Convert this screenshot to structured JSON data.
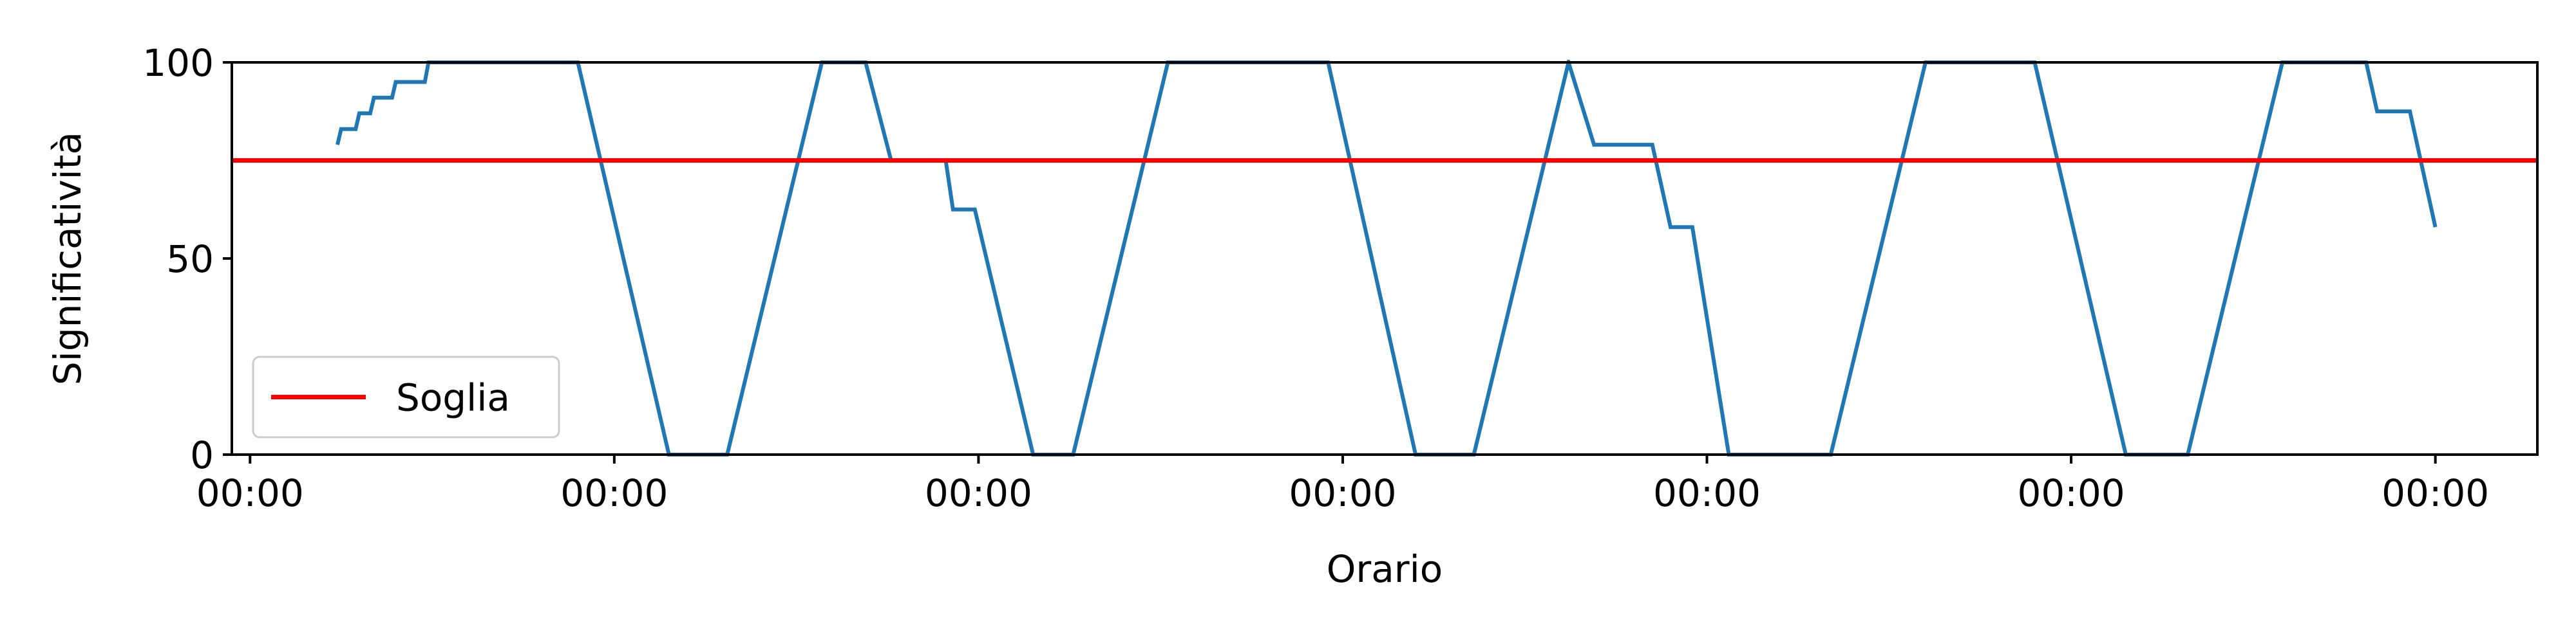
{
  "chart_data": {
    "type": "line",
    "title": "",
    "xlabel": "Orario",
    "ylabel": "Significatività",
    "ylim": [
      0,
      100
    ],
    "xlim": [
      -0.05,
      6.28
    ],
    "grid": true,
    "legend_position": "lower-left",
    "x_tick_values": [
      0,
      1,
      2,
      3,
      4,
      5,
      6
    ],
    "x_tick_labels": [
      "00:00",
      "00:00",
      "00:00",
      "00:00",
      "00:00",
      "00:00",
      "00:00"
    ],
    "y_ticks": [
      0,
      50,
      100
    ],
    "series": [
      {
        "name": "",
        "color": "#1f77b4",
        "points": [
          [
            0.24,
            79
          ],
          [
            0.25,
            83
          ],
          [
            0.29,
            83
          ],
          [
            0.3,
            87
          ],
          [
            0.33,
            87
          ],
          [
            0.34,
            91
          ],
          [
            0.39,
            91
          ],
          [
            0.4,
            95
          ],
          [
            0.48,
            95
          ],
          [
            0.49,
            100
          ],
          [
            0.9,
            100
          ],
          [
            1.15,
            0
          ],
          [
            1.31,
            0
          ],
          [
            1.57,
            100
          ],
          [
            1.69,
            100
          ],
          [
            1.76,
            75
          ],
          [
            1.91,
            75
          ],
          [
            1.93,
            62.5
          ],
          [
            1.99,
            62.5
          ],
          [
            2.15,
            0
          ],
          [
            2.26,
            0
          ],
          [
            2.52,
            100
          ],
          [
            2.96,
            100
          ],
          [
            3.2,
            0
          ],
          [
            3.36,
            0
          ],
          [
            3.62,
            100
          ],
          [
            3.69,
            79
          ],
          [
            3.85,
            79
          ],
          [
            3.9,
            58
          ],
          [
            3.96,
            58
          ],
          [
            4.06,
            0
          ],
          [
            4.34,
            0
          ],
          [
            4.6,
            100
          ],
          [
            4.9,
            100
          ],
          [
            5.15,
            0
          ],
          [
            5.32,
            0
          ],
          [
            5.58,
            100
          ],
          [
            5.81,
            100
          ],
          [
            5.84,
            87.5
          ],
          [
            5.93,
            87.5
          ],
          [
            6.0,
            58
          ]
        ]
      },
      {
        "name": "Soglia",
        "color": "#ff0000",
        "constant_y": 75
      }
    ],
    "legend": [
      {
        "label": "Soglia",
        "color": "#ff0000"
      }
    ]
  }
}
